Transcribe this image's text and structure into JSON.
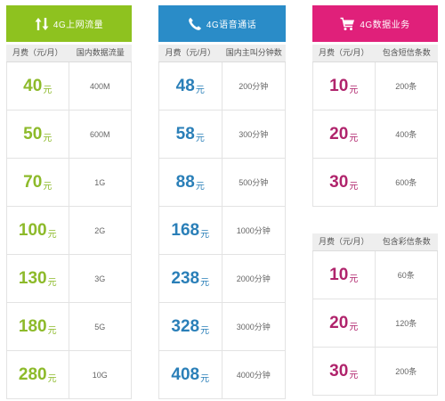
{
  "data_plan": {
    "title": "4G上网流量",
    "icon": "up-down-arrows-icon",
    "color": "#8ec21f",
    "col_price": "月费（元/月）",
    "col_amount": "国内数据流量",
    "rows": [
      {
        "price": "40",
        "unit": "元",
        "amount": "400M"
      },
      {
        "price": "50",
        "unit": "元",
        "amount": "600M"
      },
      {
        "price": "70",
        "unit": "元",
        "amount": "1G"
      },
      {
        "price": "100",
        "unit": "元",
        "amount": "2G"
      },
      {
        "price": "130",
        "unit": "元",
        "amount": "3G"
      },
      {
        "price": "180",
        "unit": "元",
        "amount": "5G"
      },
      {
        "price": "280",
        "unit": "元",
        "amount": "10G"
      }
    ]
  },
  "voice_plan": {
    "title": "4G语音通话",
    "icon": "phone-icon",
    "color": "#2a8cc8",
    "col_price": "月费（元/月）",
    "col_amount": "国内主叫分钟数",
    "rows": [
      {
        "price": "48",
        "unit": "元",
        "amount": "200分钟"
      },
      {
        "price": "58",
        "unit": "元",
        "amount": "300分钟"
      },
      {
        "price": "88",
        "unit": "元",
        "amount": "500分钟"
      },
      {
        "price": "168",
        "unit": "元",
        "amount": "1000分钟"
      },
      {
        "price": "238",
        "unit": "元",
        "amount": "2000分钟"
      },
      {
        "price": "328",
        "unit": "元",
        "amount": "3000分钟"
      },
      {
        "price": "408",
        "unit": "元",
        "amount": "4000分钟"
      }
    ]
  },
  "sms_plan": {
    "title": "4G数据业务",
    "icon": "shopping-cart-icon",
    "color": "#e0207a",
    "col_price": "月费（元/月）",
    "col_amount": "包含短信条数",
    "rows": [
      {
        "price": "10",
        "unit": "元",
        "amount": "200条"
      },
      {
        "price": "20",
        "unit": "元",
        "amount": "400条"
      },
      {
        "price": "30",
        "unit": "元",
        "amount": "600条"
      }
    ]
  },
  "mms_plan": {
    "col_price": "月费（元/月）",
    "col_amount": "包含彩信条数",
    "rows": [
      {
        "price": "10",
        "unit": "元",
        "amount": "60条"
      },
      {
        "price": "20",
        "unit": "元",
        "amount": "120条"
      },
      {
        "price": "30",
        "unit": "元",
        "amount": "200条"
      }
    ]
  }
}
